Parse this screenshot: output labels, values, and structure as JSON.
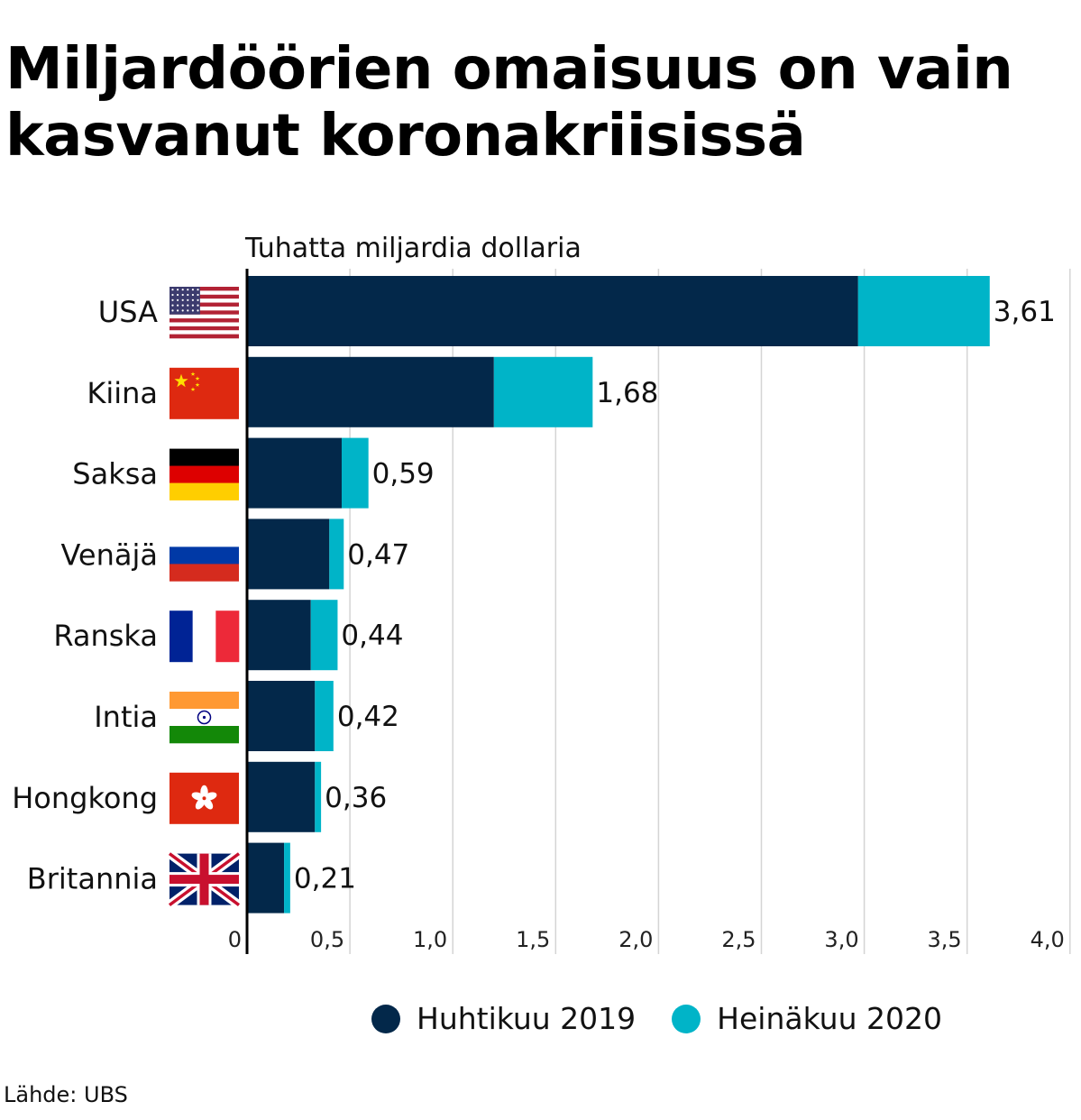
{
  "title_lines": [
    "Miljardöörien omaisuus on vain",
    "kasvanut koronakriisissä"
  ],
  "source": "Lähde: UBS",
  "colors": {
    "series1": "#03284a",
    "series2": "#00b4c8",
    "grid": "#d4d4d4",
    "axis": "#000000"
  },
  "chart_data": {
    "type": "bar",
    "orientation": "horizontal",
    "stacked": true,
    "unit_label": "Tuhatta miljardia dollaria",
    "categories": [
      "USA",
      "Kiina",
      "Saksa",
      "Venäjä",
      "Ranska",
      "Intia",
      "Hongkong",
      "Britannia"
    ],
    "flags": [
      "us-flag",
      "china-flag",
      "germany-flag",
      "russia-flag",
      "france-flag",
      "india-flag",
      "hongkong-flag",
      "uk-flag"
    ],
    "series": [
      {
        "name": "Huhtikuu 2019",
        "values": [
          2.97,
          1.2,
          0.46,
          0.4,
          0.31,
          0.33,
          0.33,
          0.18
        ]
      },
      {
        "name": "Heinäkuu 2020",
        "values": [
          0.64,
          0.48,
          0.13,
          0.07,
          0.13,
          0.09,
          0.03,
          0.03
        ]
      }
    ],
    "totals": [
      3.61,
      1.68,
      0.59,
      0.47,
      0.44,
      0.42,
      0.36,
      0.21
    ],
    "total_labels": [
      "3,61",
      "1,68",
      "0,59",
      "0,47",
      "0,44",
      "0,42",
      "0,36",
      "0,21"
    ],
    "xlim": [
      0,
      4.0
    ],
    "xticks": [
      0,
      0.5,
      1.0,
      1.5,
      2.0,
      2.5,
      3.0,
      3.5,
      4.0
    ],
    "xtick_labels": [
      "0",
      "0,5",
      "1,0",
      "1,5",
      "2,0",
      "2,5",
      "3,0",
      "3,5",
      "4,0"
    ],
    "grid": true,
    "legend_position": "bottom"
  }
}
